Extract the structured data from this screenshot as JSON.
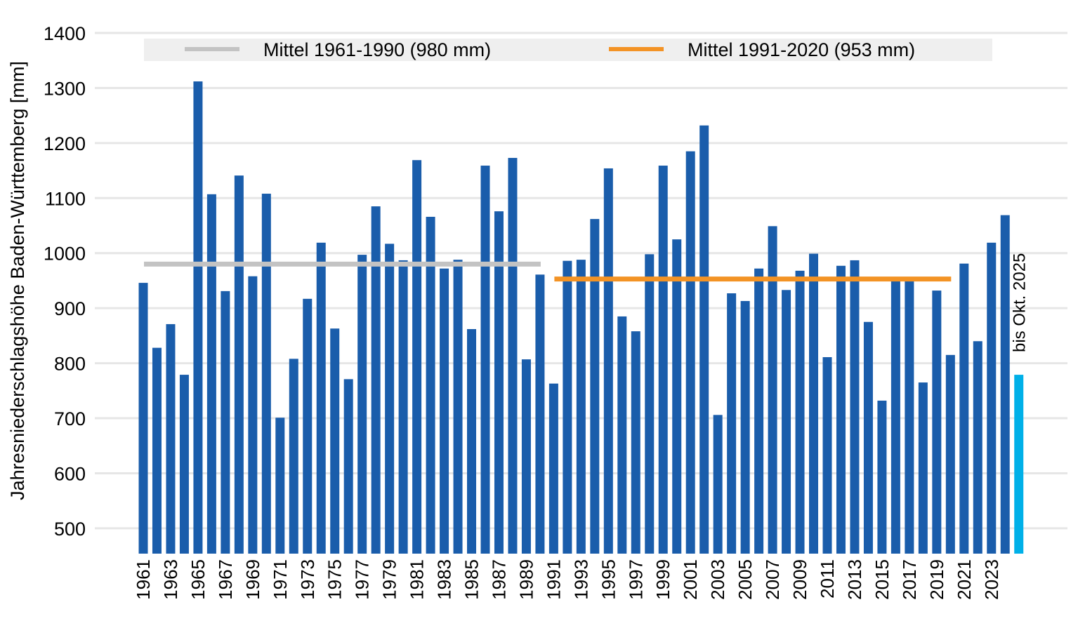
{
  "chart_data": {
    "type": "bar",
    "y_label": "Jahresniederschlagshöhe Baden-Württemberg [mm]",
    "x": [
      1961,
      1962,
      1963,
      1964,
      1965,
      1966,
      1967,
      1968,
      1969,
      1970,
      1971,
      1972,
      1973,
      1974,
      1975,
      1976,
      1977,
      1978,
      1979,
      1980,
      1981,
      1982,
      1983,
      1984,
      1985,
      1986,
      1987,
      1988,
      1989,
      1990,
      1991,
      1992,
      1993,
      1994,
      1995,
      1996,
      1997,
      1998,
      1999,
      2000,
      2001,
      2002,
      2003,
      2004,
      2005,
      2006,
      2007,
      2008,
      2009,
      2010,
      2011,
      2012,
      2013,
      2014,
      2015,
      2016,
      2017,
      2018,
      2019,
      2020,
      2021,
      2022,
      2023,
      2024,
      2025
    ],
    "values": [
      946,
      828,
      871,
      779,
      1312,
      1107,
      931,
      1141,
      958,
      1108,
      701,
      808,
      917,
      1019,
      863,
      771,
      997,
      1085,
      1017,
      987,
      1169,
      1066,
      972,
      988,
      862,
      1159,
      1076,
      1173,
      807,
      961,
      763,
      986,
      988,
      1062,
      1154,
      885,
      858,
      998,
      1159,
      1025,
      1185,
      1232,
      706,
      927,
      913,
      972,
      1049,
      933,
      968,
      999,
      811,
      977,
      987,
      875,
      732,
      955,
      952,
      765,
      932,
      815,
      981,
      840,
      1019,
      1069,
      779
    ],
    "colors": [
      "#1a5dab",
      "#1a5dab",
      "#1a5dab",
      "#1a5dab",
      "#1a5dab",
      "#1a5dab",
      "#1a5dab",
      "#1a5dab",
      "#1a5dab",
      "#1a5dab",
      "#1a5dab",
      "#1a5dab",
      "#1a5dab",
      "#1a5dab",
      "#1a5dab",
      "#1a5dab",
      "#1a5dab",
      "#1a5dab",
      "#1a5dab",
      "#1a5dab",
      "#1a5dab",
      "#1a5dab",
      "#1a5dab",
      "#1a5dab",
      "#1a5dab",
      "#1a5dab",
      "#1a5dab",
      "#1a5dab",
      "#1a5dab",
      "#1a5dab",
      "#1a5dab",
      "#1a5dab",
      "#1a5dab",
      "#1a5dab",
      "#1a5dab",
      "#1a5dab",
      "#1a5dab",
      "#1a5dab",
      "#1a5dab",
      "#1a5dab",
      "#1a5dab",
      "#1a5dab",
      "#1a5dab",
      "#1a5dab",
      "#1a5dab",
      "#1a5dab",
      "#1a5dab",
      "#1a5dab",
      "#1a5dab",
      "#1a5dab",
      "#1a5dab",
      "#1a5dab",
      "#1a5dab",
      "#1a5dab",
      "#1a5dab",
      "#1a5dab",
      "#1a5dab",
      "#1a5dab",
      "#1a5dab",
      "#1a5dab",
      "#1a5dab",
      "#1a5dab",
      "#1a5dab",
      "#1a5dab",
      "#00b0e8"
    ],
    "xlim": [
      1960.5,
      2025.5
    ],
    "xticks": [
      1961,
      1963,
      1965,
      1967,
      1969,
      1971,
      1973,
      1975,
      1977,
      1979,
      1981,
      1983,
      1985,
      1987,
      1989,
      1991,
      1993,
      1995,
      1997,
      1999,
      2001,
      2003,
      2005,
      2007,
      2009,
      2011,
      2013,
      2015,
      2017,
      2019,
      2021,
      2023
    ],
    "ylim": [
      454,
      1400
    ],
    "yticks": [
      500,
      600,
      700,
      800,
      900,
      1000,
      1100,
      1200,
      1300,
      1400
    ],
    "grid": true,
    "reference_lines": [
      {
        "name": "Mittel 1961-1990 (980 mm)",
        "value": 980,
        "x": [
          1961,
          1990
        ],
        "color": "#c3c3c3"
      },
      {
        "name": "Mittel 1991-2020 (953 mm)",
        "value": 953,
        "x": [
          1991,
          2020
        ],
        "color": "#f39325"
      }
    ],
    "annotations": [
      {
        "text": "bis Okt. 2025",
        "x": 2025
      }
    ]
  }
}
